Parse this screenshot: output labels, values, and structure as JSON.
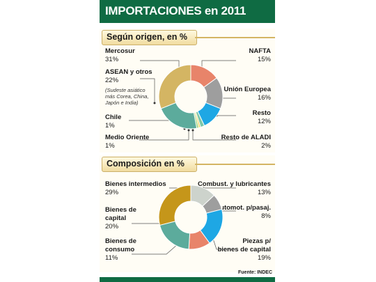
{
  "title": "IMPORTACIONES en 2011",
  "source": "Fuente: INDEC",
  "colors": {
    "title_bar": "#0f6b43",
    "mustard": "#d4b563",
    "salmon": "#e8846a",
    "gray": "#9e9e9e",
    "blue": "#1ea7e4",
    "teal": "#5cab9c",
    "dark_mustard": "#c5961a",
    "light_gray": "#cdd3cc"
  },
  "chart_data": [
    {
      "type": "pie",
      "title": "Según origen, en %",
      "unit": "%",
      "slices": [
        {
          "label": "NAFTA",
          "value_text": "15%",
          "value": 15,
          "color": "#e8846a"
        },
        {
          "label": "Unión Europea",
          "value_text": "16%",
          "value": 16,
          "color": "#9e9e9e"
        },
        {
          "label": "Resto",
          "value_text": "12%",
          "value": 12,
          "color": "#1ea7e4"
        },
        {
          "label": "Resto de ALADI",
          "value_text": "2%",
          "value": 2,
          "color": "#7ec8a8"
        },
        {
          "label": "Medio Oriente",
          "value_text": "1%",
          "value": 1,
          "color": "#f3d76a"
        },
        {
          "label": "Chile",
          "value_text": "1%",
          "value": 1,
          "color": "#9bd37a"
        },
        {
          "label": "ASEAN y otros",
          "value_text": "22%",
          "value": 22,
          "color": "#5cab9c",
          "note_lines": [
            "(Sudeste asiático",
            "más Corea, China,",
            "Japón e India)"
          ]
        },
        {
          "label": "Mercosur",
          "value_text": "31%",
          "value": 31,
          "color": "#d4b563"
        }
      ]
    },
    {
      "type": "pie",
      "title": "Composición en %",
      "unit": "%",
      "slices": [
        {
          "label": "Combust. y lubricantes",
          "value_text": "13%",
          "value": 13,
          "color": "#cdd3cc"
        },
        {
          "label": "Automot. p/pasaj.",
          "value_text": "8%",
          "value": 8,
          "color": "#9e9e9e"
        },
        {
          "label_lines": [
            "Piezas p/",
            "bienes de capital"
          ],
          "value_text": "19%",
          "value": 19,
          "color": "#1ea7e4"
        },
        {
          "label_lines": [
            "Bienes de",
            "consumo"
          ],
          "value_text": "11%",
          "value": 11,
          "color": "#e8846a"
        },
        {
          "label_lines": [
            "Bienes de",
            "capital"
          ],
          "value_text": "20%",
          "value": 20,
          "color": "#5cab9c"
        },
        {
          "label": "Bienes intermedios",
          "value_text": "29%",
          "value": 29,
          "color": "#c5961a"
        }
      ]
    }
  ]
}
